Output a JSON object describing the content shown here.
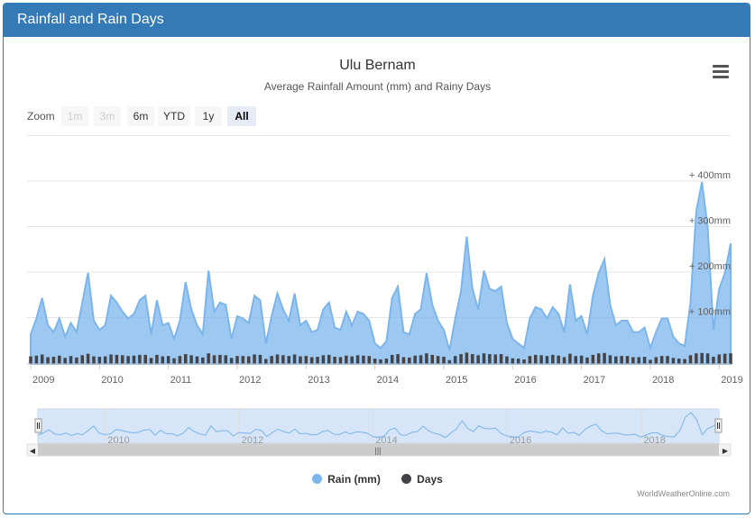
{
  "panel": {
    "title": "Rainfall and Rain Days"
  },
  "chart": {
    "title": "Ulu Bernam",
    "subtitle": "Average Rainfall Amount (mm) and Rainy Days",
    "credit": "WorldWeatherOnline.com"
  },
  "menu": {
    "icon": "hamburger-menu-icon"
  },
  "zoom": {
    "label": "Zoom",
    "buttons": [
      {
        "label": "1m",
        "state": "disabled"
      },
      {
        "label": "3m",
        "state": "disabled"
      },
      {
        "label": "6m",
        "state": "normal"
      },
      {
        "label": "YTD",
        "state": "normal"
      },
      {
        "label": "1y",
        "state": "normal"
      },
      {
        "label": "All",
        "state": "active"
      }
    ]
  },
  "legend": [
    {
      "label": "Rain (mm)",
      "color": "#7cb5ec"
    },
    {
      "label": "Days",
      "color": "#434348"
    }
  ],
  "navigator": {
    "scrollbar_grip": "|||"
  },
  "chart_data": {
    "type": "area",
    "x_range": [
      "2009-01",
      "2019-04"
    ],
    "x_ticks": [
      "2009",
      "2010",
      "2011",
      "2012",
      "2013",
      "2014",
      "2015",
      "2016",
      "2017",
      "2018",
      "2019"
    ],
    "y_ticks": [
      "+ 100mm",
      "+ 200mm",
      "+ 300mm",
      "+ 400mm"
    ],
    "ylim": [
      0,
      500
    ],
    "navigator_ticks": [
      "2010",
      "2012",
      "2014",
      "2016",
      "2018"
    ],
    "series": [
      {
        "name": "Rain (mm)",
        "type": "area",
        "color": "#7cb5ec",
        "values": [
          65,
          100,
          145,
          85,
          70,
          100,
          60,
          90,
          70,
          135,
          200,
          95,
          75,
          85,
          150,
          135,
          115,
          100,
          110,
          140,
          150,
          65,
          140,
          85,
          90,
          55,
          95,
          180,
          120,
          85,
          65,
          205,
          115,
          135,
          130,
          55,
          105,
          100,
          90,
          150,
          140,
          45,
          105,
          155,
          120,
          95,
          155,
          85,
          95,
          70,
          75,
          120,
          135,
          80,
          75,
          115,
          85,
          115,
          110,
          95,
          45,
          35,
          50,
          145,
          170,
          70,
          65,
          110,
          120,
          200,
          130,
          95,
          75,
          30,
          100,
          160,
          280,
          165,
          120,
          205,
          165,
          160,
          170,
          90,
          55,
          45,
          35,
          100,
          125,
          120,
          100,
          125,
          110,
          70,
          175,
          95,
          105,
          65,
          150,
          200,
          230,
          130,
          85,
          95,
          95,
          70,
          70,
          80,
          35,
          70,
          100,
          100,
          60,
          45,
          40,
          135,
          335,
          400,
          300,
          75,
          165,
          200,
          265
        ],
        "start_index": 0
      },
      {
        "name": "Days",
        "type": "column",
        "color": "#434348",
        "values": [
          20,
          22,
          25,
          18,
          19,
          22,
          16,
          21,
          17,
          23,
          27,
          20,
          19,
          20,
          25,
          24,
          23,
          21,
          22,
          24,
          24,
          16,
          24,
          20,
          21,
          15,
          21,
          26,
          23,
          20,
          17,
          28,
          23,
          24,
          23,
          16,
          21,
          21,
          20,
          25,
          24,
          13,
          21,
          25,
          23,
          21,
          25,
          20,
          21,
          18,
          19,
          23,
          24,
          19,
          18,
          22,
          20,
          23,
          22,
          21,
          14,
          12,
          14,
          24,
          26,
          18,
          17,
          22,
          23,
          28,
          24,
          21,
          19,
          10,
          21,
          26,
          30,
          26,
          23,
          28,
          26,
          25,
          26,
          20,
          15,
          14,
          12,
          21,
          24,
          23,
          21,
          24,
          22,
          18,
          27,
          21,
          22,
          17,
          24,
          28,
          29,
          23,
          20,
          21,
          21,
          18,
          18,
          19,
          11,
          18,
          21,
          21,
          16,
          14,
          13,
          23,
          28,
          29,
          28,
          19,
          25,
          27,
          28
        ]
      }
    ],
    "grid": true,
    "legend_position": "bottom-center"
  }
}
